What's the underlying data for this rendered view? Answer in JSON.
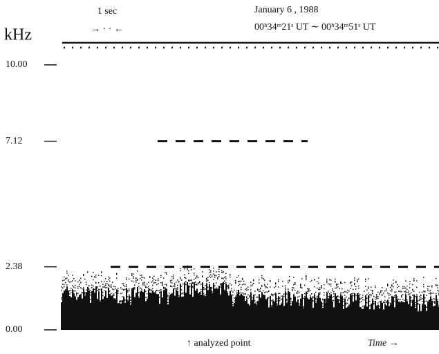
{
  "chart_data": {
    "type": "spectrogram",
    "scale_label": "1 sec",
    "scale_arrows": "→ · · ←",
    "date": "January 6 , 1988",
    "time_range": "00ʰ34ᵐ21ˢ UT ∼ 00ʰ34ᵐ51ˢ UT",
    "ylabel": "kHz",
    "ylim": [
      0,
      10
    ],
    "yticks": [
      {
        "value": 0,
        "label": "0.00"
      },
      {
        "value": 2.38,
        "label": "2.38"
      },
      {
        "value": 7.12,
        "label": "7.12"
      },
      {
        "value": 10,
        "label": "10.00"
      }
    ],
    "annotation": "↑ analyzed point",
    "xlabel": "Time →"
  }
}
